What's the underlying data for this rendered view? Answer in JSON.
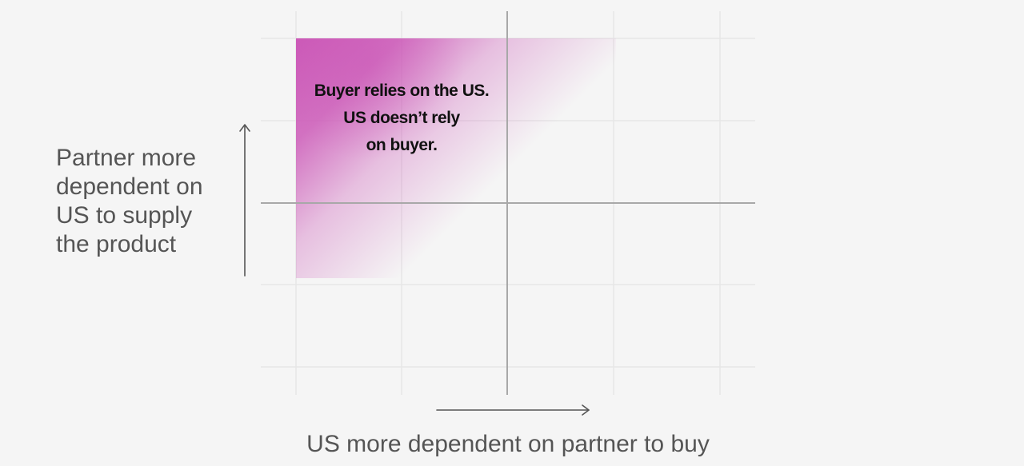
{
  "diagram": {
    "y_axis_label": "Partner more\ndependent on\nUS to supply\nthe product",
    "x_axis_label": "US more dependent on partner to buy",
    "highlight_quadrant": {
      "lines": [
        "Buyer relies on the US.",
        "US doesn’t rely",
        "on buyer."
      ]
    },
    "colors": {
      "background": "#f5f5f5",
      "highlight": "#cc5ab8",
      "grid": "#e6e6e6",
      "axis": "#a8a8a8",
      "arrow": "#555555",
      "label_text": "#555555",
      "callout_text": "#111111"
    },
    "icons": {
      "y_arrow": "arrow-up-icon",
      "x_arrow": "arrow-right-icon"
    }
  }
}
